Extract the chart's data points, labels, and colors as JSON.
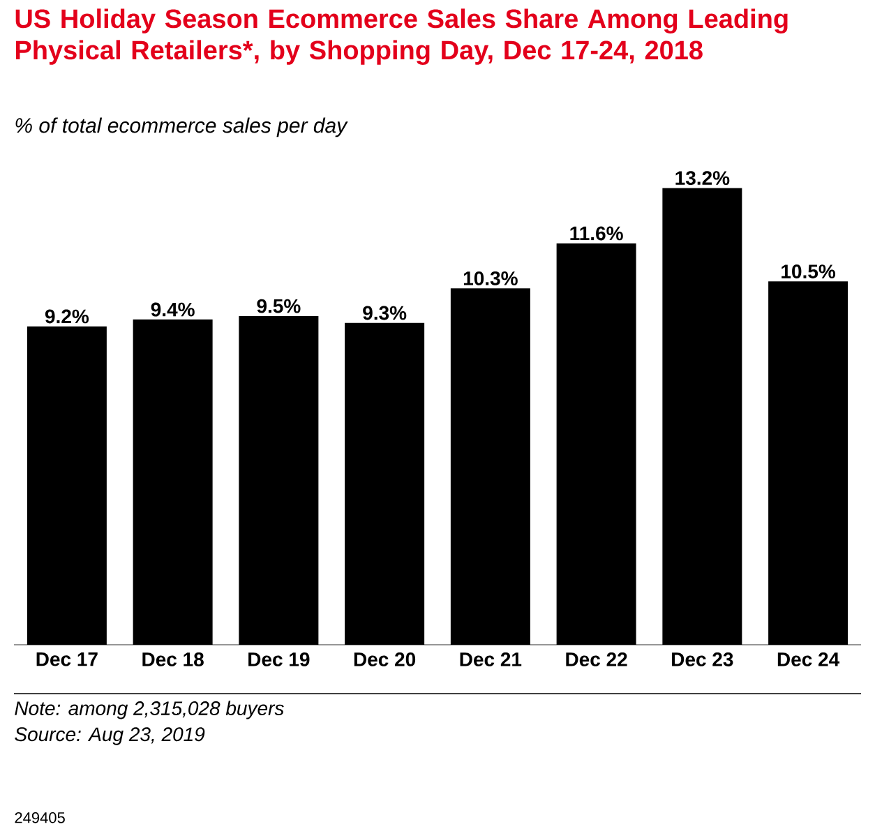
{
  "chart_data": {
    "type": "bar",
    "title": "US Holiday Season Ecommerce Sales Share Among Leading Physical Retailers*, by Shopping Day, Dec 17-24, 2018",
    "subtitle": "% of total ecommerce sales per day",
    "categories": [
      "Dec 17",
      "Dec 18",
      "Dec 19",
      "Dec 20",
      "Dec 21",
      "Dec 22",
      "Dec 23",
      "Dec 24"
    ],
    "values": [
      9.2,
      9.4,
      9.5,
      9.3,
      10.3,
      11.6,
      13.2,
      10.5
    ],
    "value_labels": [
      "9.2%",
      "9.4%",
      "9.5%",
      "9.3%",
      "10.3%",
      "11.6%",
      "13.2%",
      "10.5%"
    ],
    "color": "#000000",
    "annotations": [
      "Note: among 2,315,028 buyers",
      "Source: Aug 23, 2019",
      "249405"
    ]
  }
}
